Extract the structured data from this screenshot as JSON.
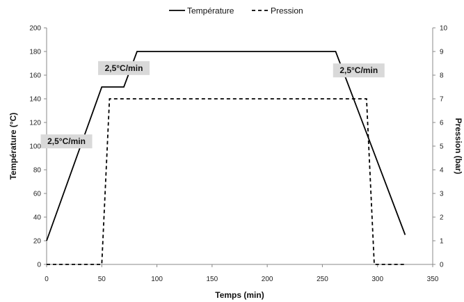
{
  "chart_data": {
    "type": "line",
    "title": "",
    "xlabel": "Temps (min)",
    "ylabel": "Température (°C)",
    "y2label": "Pression (bar)",
    "xlim": [
      0,
      350
    ],
    "ylim": [
      0,
      200
    ],
    "y2lim": [
      0,
      10
    ],
    "x_ticks": [
      0,
      50,
      100,
      150,
      200,
      250,
      300,
      350
    ],
    "y_ticks": [
      0,
      20,
      40,
      60,
      80,
      100,
      120,
      140,
      160,
      180,
      200
    ],
    "y2_ticks": [
      0,
      1,
      2,
      3,
      4,
      5,
      6,
      7,
      8,
      9,
      10
    ],
    "grid": false,
    "legend_position": "top",
    "series": [
      {
        "name": "Température",
        "axis": "left",
        "style": "solid",
        "color": "#000000",
        "x": [
          0,
          50,
          70,
          82,
          262,
          325
        ],
        "y": [
          20,
          150,
          150,
          180,
          180,
          25
        ]
      },
      {
        "name": "Pression",
        "axis": "right",
        "style": "dashed",
        "color": "#000000",
        "x": [
          0,
          50,
          57,
          290,
          297,
          325
        ],
        "y": [
          0,
          0,
          7,
          7,
          0,
          0
        ]
      }
    ],
    "annotations": [
      {
        "text": "2,5°C/min",
        "x": 18,
        "y": 104
      },
      {
        "text": "2,5°C/min",
        "x": 70,
        "y": 166
      },
      {
        "text": "2,5°C/min",
        "x": 283,
        "y": 164
      }
    ]
  }
}
